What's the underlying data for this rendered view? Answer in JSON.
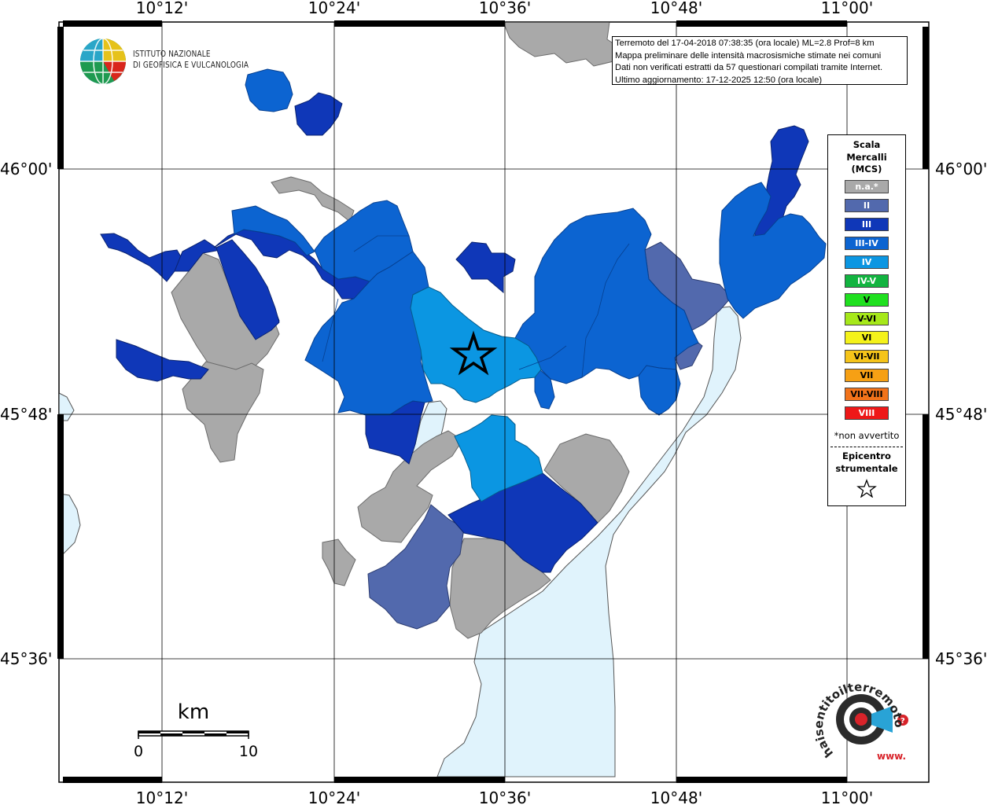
{
  "map_title": "Terremoto del 17-04-2018 07:38:35 (ora locale) ML=2.8 Prof=8 km",
  "info_lines": [
    "Terremoto del 17-04-2018 07:38:35 (ora locale) ML=2.8 Prof=8 km",
    "Mappa preliminare delle intensità macrosismiche stimate nei comuni",
    "Dati non verificati estratti da 57 questionari compilati tramite Internet.",
    "Ultimo aggiornamento: 17-12-2025 12:50 (ora locale)"
  ],
  "axes": {
    "top_labels": [
      "10°12'",
      "10°24'",
      "10°36'",
      "10°48'",
      "11°00'"
    ],
    "bottom_labels": [
      "10°12'",
      "10°24'",
      "10°36'",
      "10°48'",
      "11°00'"
    ],
    "left_labels": [
      "46°00'",
      "45°48'",
      "45°36'"
    ],
    "right_labels": [
      "46°00'",
      "45°48'",
      "45°36'"
    ]
  },
  "legend": {
    "title_lines": [
      "Scala",
      "Mercalli",
      "(MCS)"
    ],
    "items": [
      {
        "label": "n.a.*",
        "color": "#a9a9a9"
      },
      {
        "label": "II",
        "color": "#5269ad"
      },
      {
        "label": "III",
        "color": "#0f37b8"
      },
      {
        "label": "III-IV",
        "color": "#0c64d1"
      },
      {
        "label": "IV",
        "color": "#0b96e2"
      },
      {
        "label": "IV-V",
        "color": "#12b440"
      },
      {
        "label": "V",
        "color": "#1fe01f"
      },
      {
        "label": "V-VI",
        "color": "#a6e81a"
      },
      {
        "label": "VI",
        "color": "#f4f21a"
      },
      {
        "label": "VI-VII",
        "color": "#f5c41a"
      },
      {
        "label": "VII",
        "color": "#f6a014"
      },
      {
        "label": "VII-VIII",
        "color": "#f2731a"
      },
      {
        "label": "VIII",
        "color": "#ee1818"
      }
    ],
    "note": "*non avvertito",
    "epicenter_lines": [
      "Epicentro",
      "strumentale"
    ]
  },
  "logo": {
    "line1": "ISTITUTO NAZIONALE",
    "line2": "DI GEOFISICA E VULCANOLOGIA"
  },
  "scale_bar": {
    "unit": "km",
    "min": "0",
    "max": "10"
  },
  "hst_logo": {
    "text": "haisentitoilterremoto.it",
    "www": "www."
  },
  "colors": {
    "lake": "#e0f3fc",
    "grid": "#000000",
    "frame": "#000000"
  }
}
